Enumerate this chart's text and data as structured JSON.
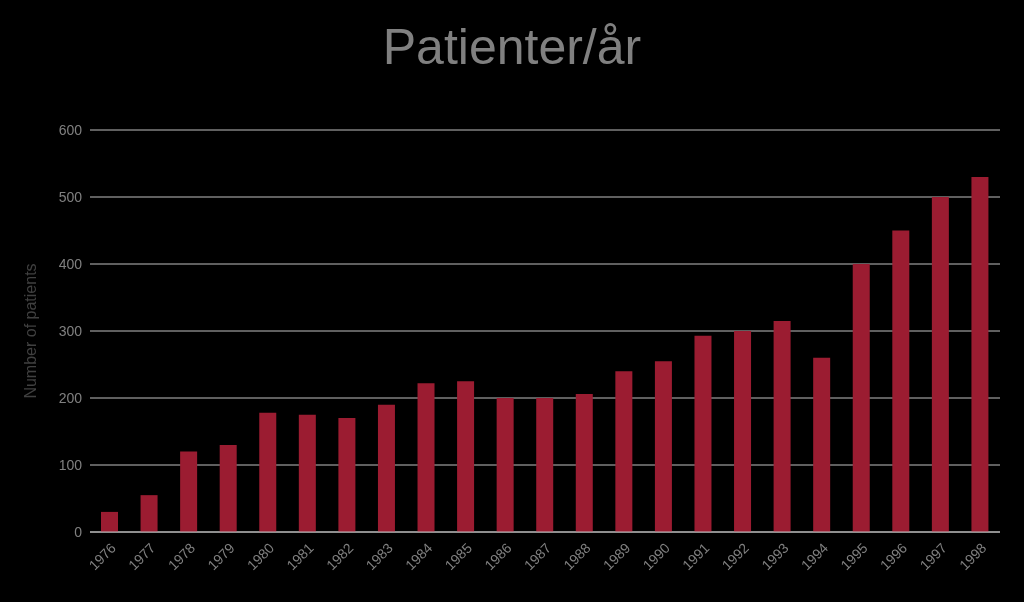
{
  "chart_data": {
    "type": "bar",
    "title": "Patienter/år",
    "ylabel": "Number of patients",
    "categories": [
      "1976",
      "1977",
      "1978",
      "1979",
      "1980",
      "1981",
      "1982",
      "1983",
      "1984",
      "1985",
      "1986",
      "1987",
      "1988",
      "1989",
      "1990",
      "1991",
      "1992",
      "1993",
      "1994",
      "1995",
      "1996",
      "1997",
      "1998"
    ],
    "values": [
      30,
      55,
      120,
      130,
      178,
      175,
      170,
      190,
      222,
      225,
      200,
      200,
      206,
      240,
      255,
      293,
      300,
      315,
      260,
      400,
      450,
      500,
      530
    ],
    "color": "#9b1c31",
    "ylim": [
      0,
      600
    ],
    "yticks": [
      0,
      100,
      200,
      300,
      400,
      500,
      600
    ],
    "grid": "y"
  }
}
